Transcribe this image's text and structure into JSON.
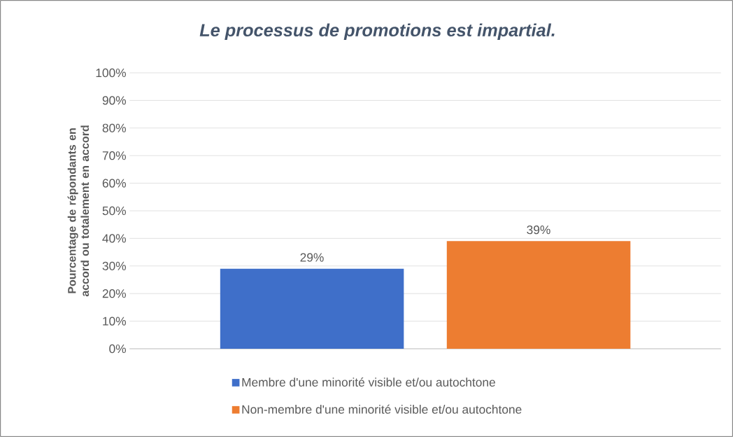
{
  "chart_data": {
    "type": "bar",
    "title": "Le processus de promotions est impartial.",
    "ylabel": "Pourcentage de répondants en accord ou totalement en accord",
    "categories": [
      null
    ],
    "series": [
      {
        "name": "Membre d'une minorité visible et/ou autochtone",
        "color": "#3f6fc9",
        "values": [
          29
        ],
        "value_labels": [
          "29%"
        ]
      },
      {
        "name": "Non-membre d'une minorité visible et/ou autochtone",
        "color": "#ed7d31",
        "values": [
          39
        ],
        "value_labels": [
          "39%"
        ]
      }
    ],
    "ylim": [
      0,
      100
    ],
    "yticks": [
      {
        "value": 0,
        "label": "0%"
      },
      {
        "value": 10,
        "label": "10%"
      },
      {
        "value": 20,
        "label": "20%"
      },
      {
        "value": 30,
        "label": "30%"
      },
      {
        "value": 40,
        "label": "40%"
      },
      {
        "value": 50,
        "label": "50%"
      },
      {
        "value": 60,
        "label": "60%"
      },
      {
        "value": 70,
        "label": "70%"
      },
      {
        "value": 80,
        "label": "80%"
      },
      {
        "value": 90,
        "label": "90%"
      },
      {
        "value": 100,
        "label": "100%"
      }
    ],
    "grid": "y",
    "legend": "bottom"
  }
}
